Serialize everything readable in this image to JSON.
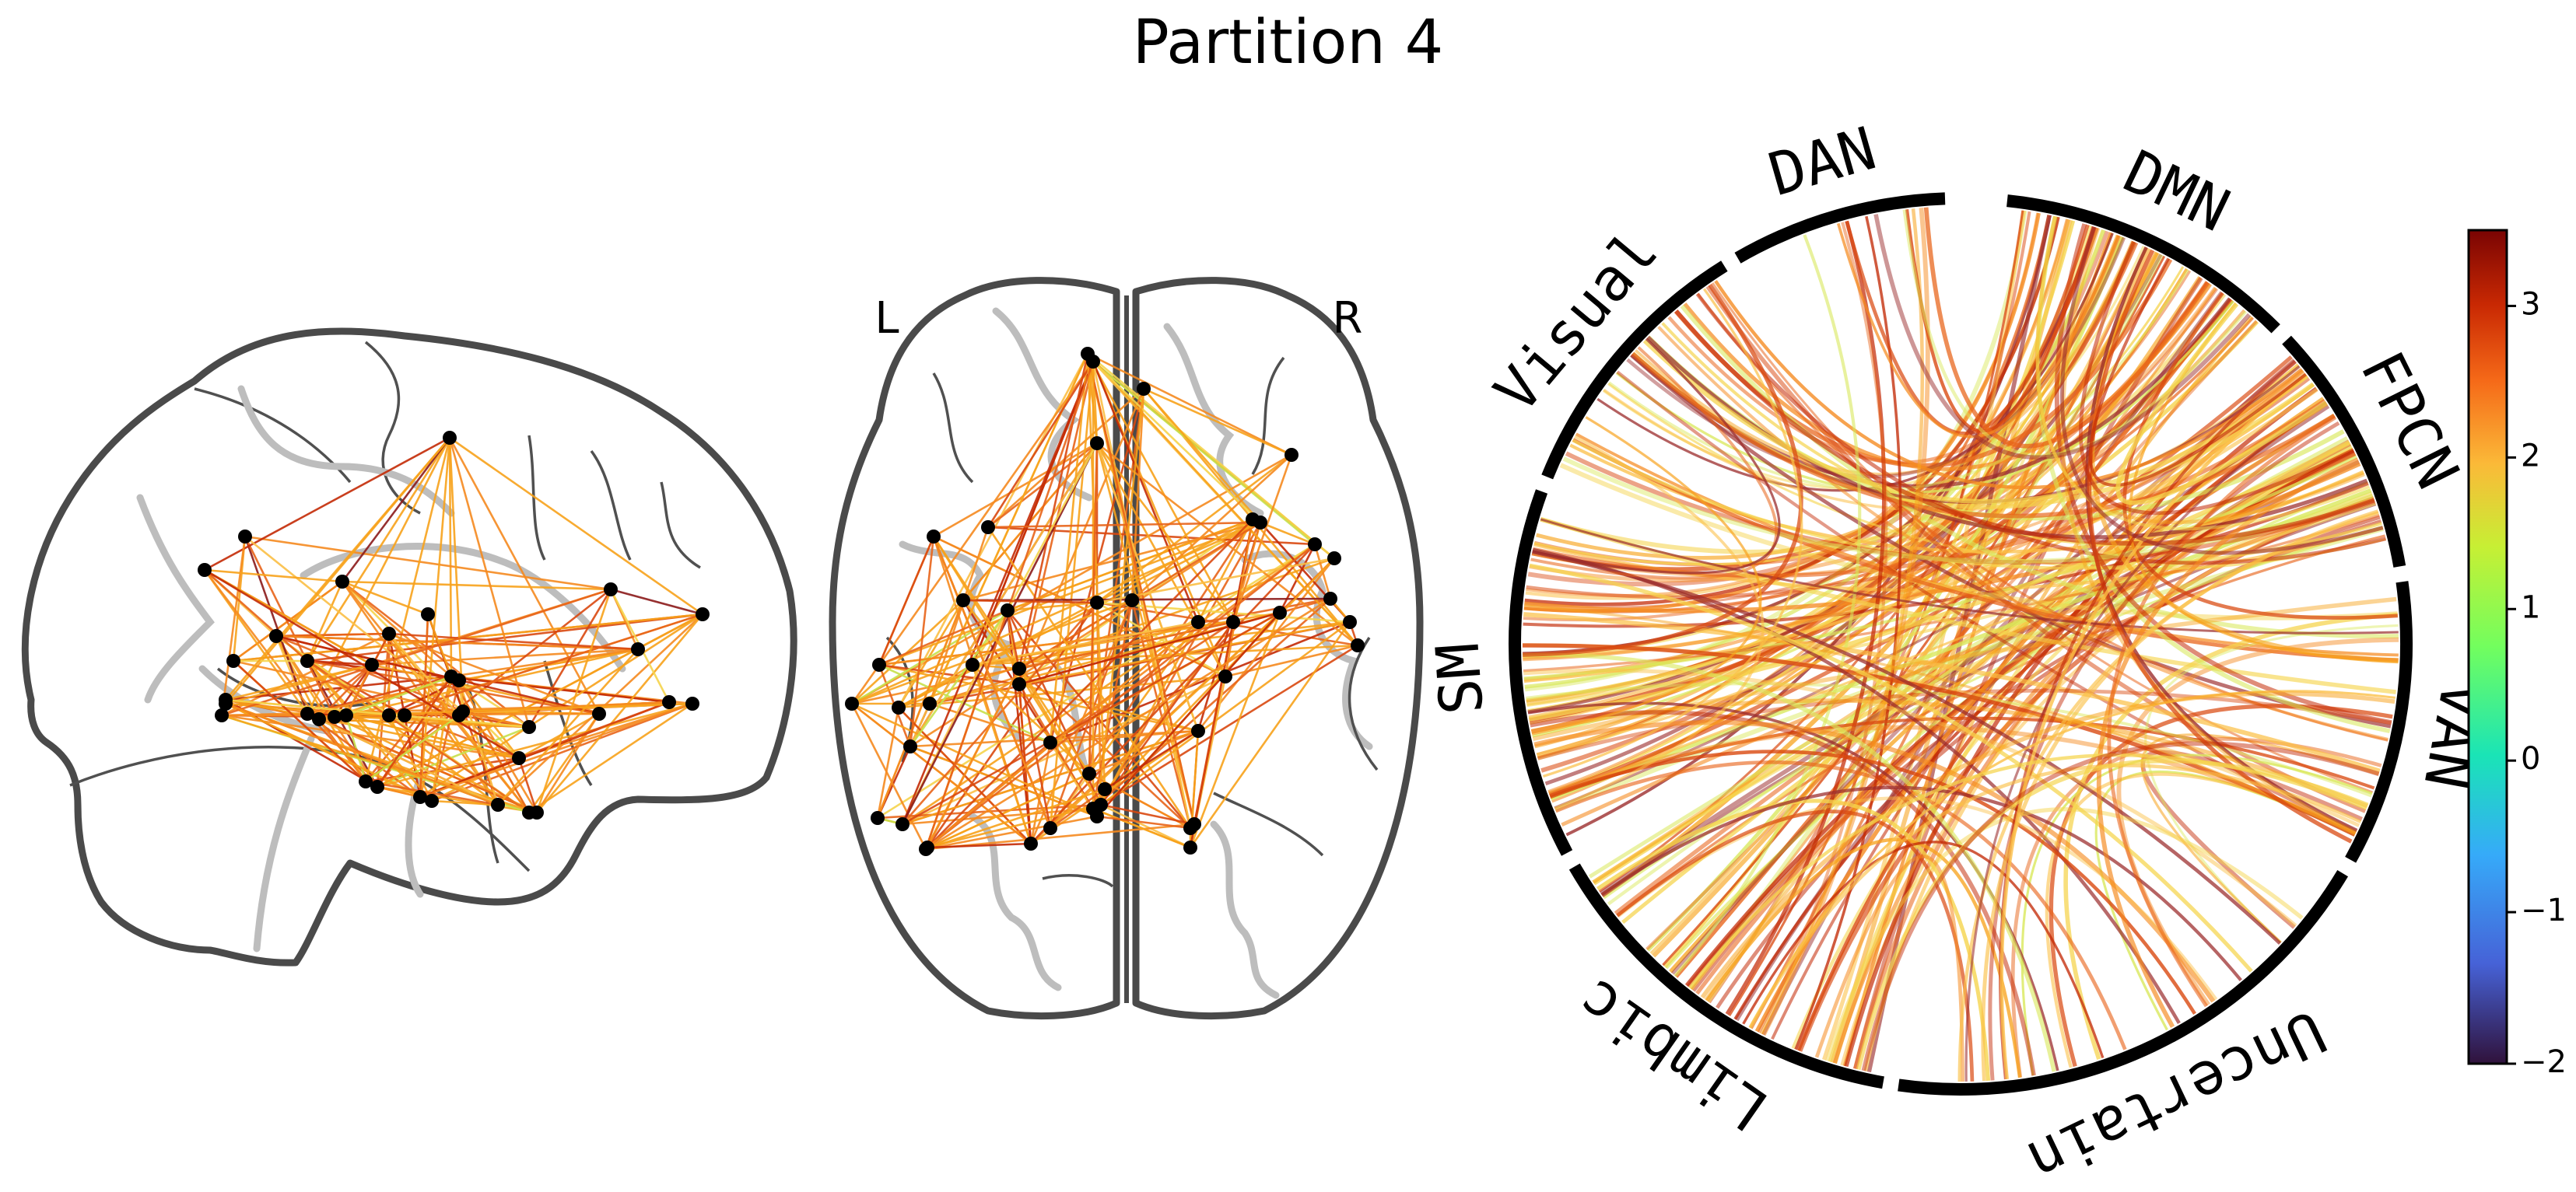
{
  "figure": {
    "title": "Partition 4"
  },
  "glass_brain": {
    "left_label": "L",
    "right_label": "R"
  },
  "chord": {
    "networks": [
      "DMN",
      "FPCN",
      "VAN",
      "Uncertain",
      "Limbic",
      "SM",
      "Visual",
      "DAN"
    ]
  },
  "colorbar": {
    "colormap": "turbo",
    "min": -2,
    "max": 3.5,
    "ticks": [
      "3",
      "2",
      "1",
      "0",
      "−1",
      "−2"
    ]
  },
  "colors": {
    "node": "#000000",
    "outline": "#4a4a4a",
    "ring": "#000000"
  }
}
